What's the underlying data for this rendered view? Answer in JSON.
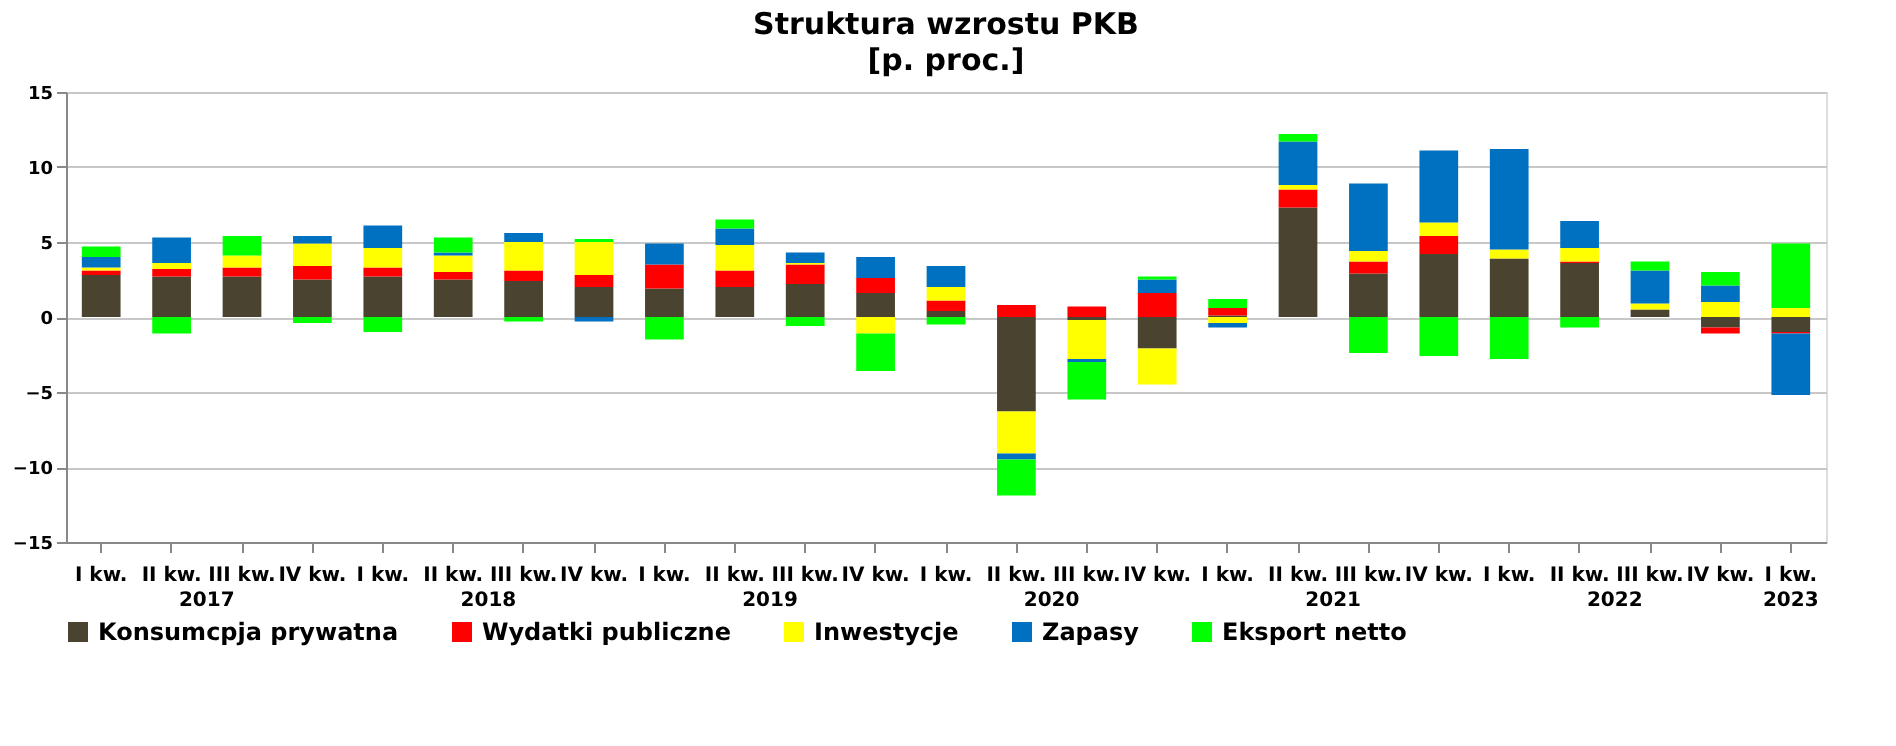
{
  "chart_data": {
    "type": "bar",
    "stacked": true,
    "title": "Struktura wzrostu PKB",
    "subtitle": "[p. proc.]",
    "categories": [
      "I kw.",
      "II kw.",
      "III kw.",
      "IV kw.",
      "I kw.",
      "II kw.",
      "III kw.",
      "IV kw.",
      "I kw.",
      "II kw.",
      "III kw.",
      "IV kw.",
      "I kw.",
      "II kw.",
      "III kw.",
      "IV kw.",
      "I kw.",
      "II kw.",
      "III kw.",
      "IV kw.",
      "I kw.",
      "II kw.",
      "III kw.",
      "IV kw.",
      "I kw."
    ],
    "annotations": [
      "2017",
      "2018",
      "2019",
      "2020",
      "2021",
      "2022",
      "2023"
    ],
    "series": [
      {
        "name": "Konsumcpja prywatna",
        "color": "#4a4330",
        "values": [
          2.8,
          2.7,
          2.7,
          2.5,
          2.7,
          2.5,
          2.4,
          2.0,
          1.9,
          2.0,
          2.2,
          1.6,
          0.4,
          -6.3,
          -0.2,
          -2.1,
          0.1,
          7.3,
          2.9,
          4.2,
          3.9,
          3.6,
          0.5,
          -0.7,
          -1.0
        ]
      },
      {
        "name": "Wydatki publiczne",
        "color": "#ff0000",
        "values": [
          0.3,
          0.5,
          0.6,
          0.9,
          0.6,
          0.5,
          0.7,
          0.8,
          1.6,
          1.1,
          1.3,
          1.0,
          0.7,
          0.8,
          0.7,
          1.6,
          0.5,
          1.2,
          0.8,
          1.2,
          0.0,
          0.1,
          0.0,
          -0.4,
          -0.1
        ]
      },
      {
        "name": "Inwestycje",
        "color": "#ffff00",
        "values": [
          0.2,
          0.4,
          0.8,
          1.5,
          1.3,
          1.1,
          1.9,
          2.2,
          0.0,
          1.7,
          0.1,
          -1.1,
          0.9,
          -2.8,
          -2.6,
          -2.4,
          -0.4,
          0.3,
          0.7,
          0.9,
          0.6,
          0.9,
          0.4,
          1.0,
          0.6
        ]
      },
      {
        "name": "Zapasy",
        "color": "#0070c0",
        "values": [
          0.7,
          1.7,
          0.0,
          0.5,
          1.5,
          0.2,
          0.6,
          -0.3,
          1.4,
          1.1,
          0.7,
          1.4,
          1.4,
          -0.4,
          -0.2,
          0.9,
          -0.3,
          2.9,
          4.5,
          4.8,
          6.7,
          1.8,
          2.2,
          1.1,
          -4.1
        ]
      },
      {
        "name": "Eksport netto",
        "color": "#00ff00",
        "values": [
          0.7,
          -1.1,
          1.3,
          -0.4,
          -1.0,
          1.0,
          -0.3,
          0.2,
          -1.5,
          0.6,
          -0.6,
          -2.5,
          -0.5,
          -2.4,
          -2.5,
          0.2,
          0.6,
          0.5,
          -2.4,
          -2.6,
          -2.8,
          -0.7,
          0.6,
          0.9,
          4.3
        ]
      }
    ],
    "ylim": [
      -15,
      15
    ],
    "yticks": [
      -15,
      -10,
      -5,
      0,
      5,
      10,
      15
    ],
    "grid": "y",
    "legend": "bottom"
  }
}
